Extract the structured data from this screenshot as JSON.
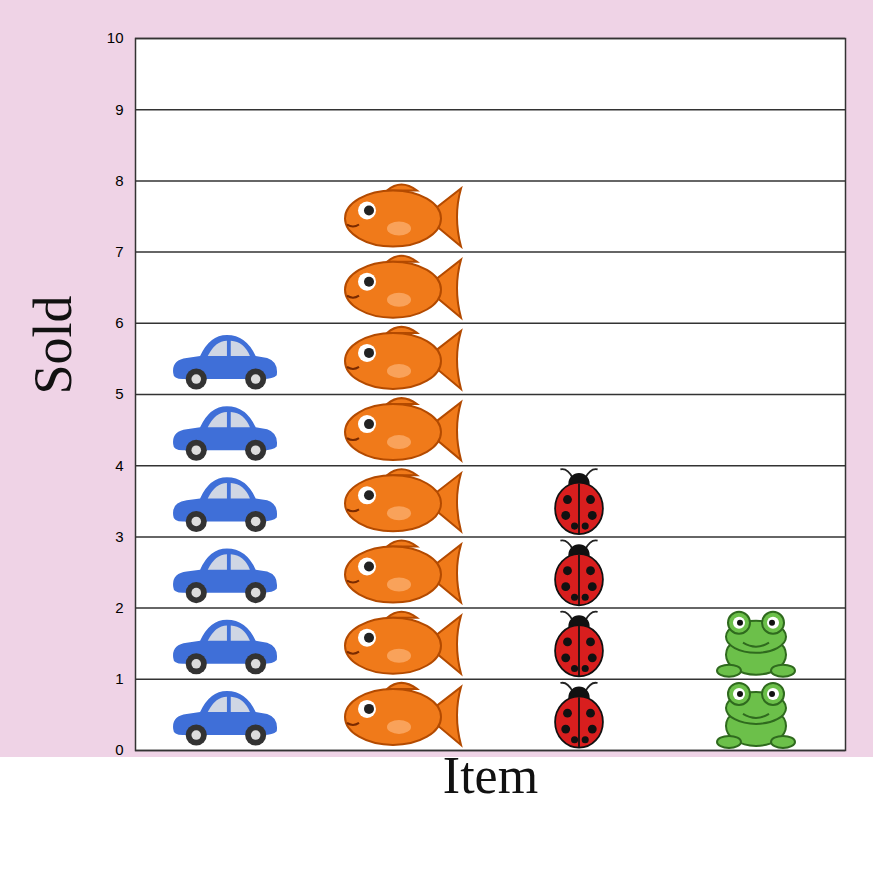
{
  "chart_data": {
    "type": "pictograph",
    "x_label": "Item",
    "y_label": "Sold",
    "categories": [
      null,
      null,
      null,
      null
    ],
    "values": [
      6,
      8,
      4,
      2
    ],
    "colors": [
      "#3f6fd8",
      "#f07a1a",
      "#d81e1e",
      "#6cc04a"
    ],
    "ylim": [
      0,
      10
    ],
    "yticks": [
      0,
      1,
      2,
      3,
      4,
      5,
      6,
      7,
      8,
      9,
      10
    ],
    "grid": true
  }
}
